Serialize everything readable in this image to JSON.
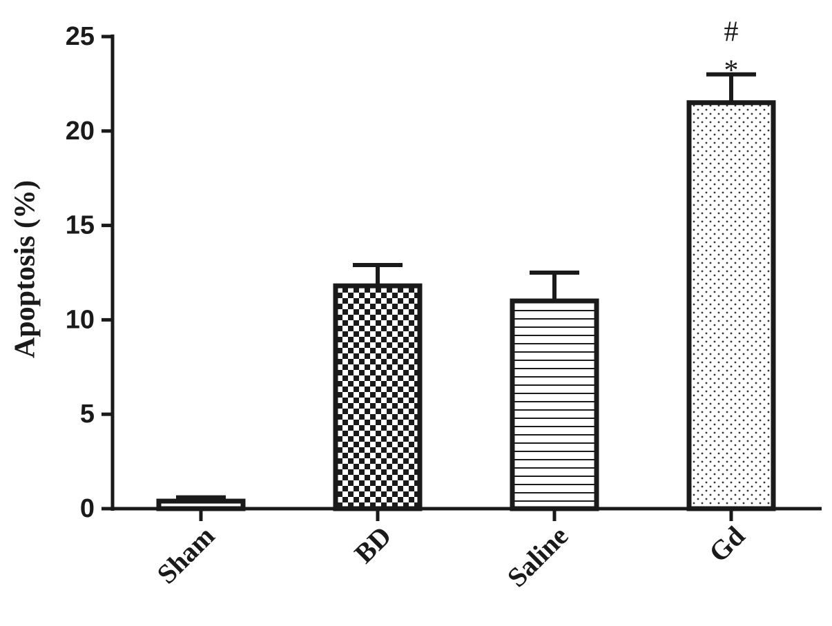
{
  "chart_data": {
    "type": "bar",
    "y_label": "Apoptosis (%)",
    "categories": [
      "Sham",
      "BD",
      "Saline",
      "Gd"
    ],
    "values": [
      0.4,
      11.8,
      11.0,
      21.5
    ],
    "errors": [
      0.2,
      1.1,
      1.5,
      1.5
    ],
    "patterns": [
      "horizontal",
      "checker",
      "horizontal",
      "dots"
    ],
    "color": "#1a1a1a",
    "annotations": [
      {
        "category": "Gd",
        "text": "*"
      },
      {
        "category": "Gd",
        "text": "#"
      }
    ],
    "ylim": [
      0,
      25
    ],
    "yticks": [
      0,
      5,
      10,
      15,
      20,
      25
    ],
    "grid": false
  }
}
